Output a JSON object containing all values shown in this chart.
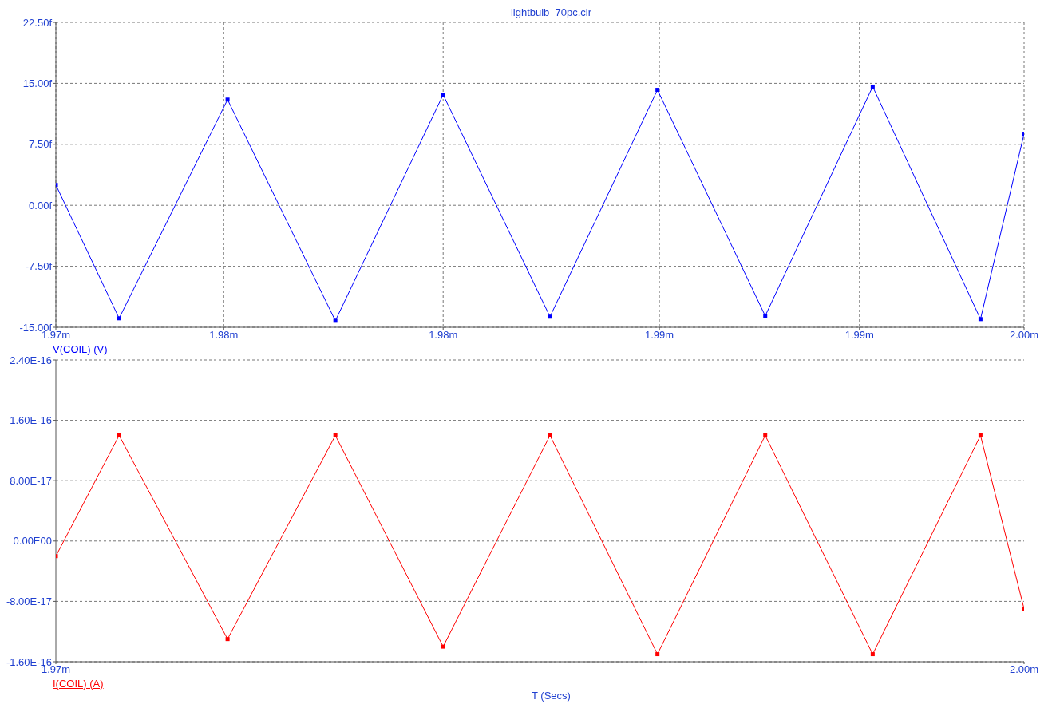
{
  "chart_data": [
    {
      "type": "line",
      "title": "lightbulb_70pc.cir",
      "marker": "square",
      "grid": true,
      "x": [
        1.97,
        1.97196,
        1.97532,
        1.97866,
        1.982,
        1.98531,
        1.98864,
        1.99198,
        1.99531,
        1.99865,
        2.0
      ],
      "xlim": [
        1.97,
        2.0
      ],
      "xticks": [
        {
          "value": 1.97,
          "label": "1.97m"
        },
        {
          "value": 1.9752,
          "label": "1.98m"
        },
        {
          "value": 1.982,
          "label": "1.98m"
        },
        {
          "value": 1.9887,
          "label": "1.99m"
        },
        {
          "value": 1.9949,
          "label": "1.99m"
        },
        {
          "value": 2.0,
          "label": "2.00m"
        }
      ],
      "ylim": [
        -15,
        22.5
      ],
      "yticks": [
        {
          "value": -15,
          "label": "-15.00f"
        },
        {
          "value": -7.5,
          "label": "-7.50f"
        },
        {
          "value": 0,
          "label": "0.00f"
        },
        {
          "value": 7.5,
          "label": "7.50f"
        },
        {
          "value": 15,
          "label": "15.00f"
        },
        {
          "value": 22.5,
          "label": "22.50f"
        }
      ],
      "series": [
        {
          "name": "V(COIL) (V)",
          "color": "#0000ff",
          "values": [
            2.5,
            -13.9,
            13.0,
            -14.2,
            13.6,
            -13.7,
            14.2,
            -13.6,
            14.6,
            -14.0,
            8.8
          ]
        }
      ]
    },
    {
      "type": "line",
      "xlabel": "T (Secs)",
      "marker": "square",
      "grid": "y",
      "x": [
        1.97,
        1.97196,
        1.97532,
        1.97866,
        1.982,
        1.98531,
        1.98864,
        1.99198,
        1.99531,
        1.99865,
        2.0
      ],
      "xlim": [
        1.97,
        2.0
      ],
      "xticks": [
        {
          "value": 1.97,
          "label": "1.97m"
        },
        {
          "value": 2.0,
          "label": "2.00m"
        }
      ],
      "ylim": [
        -1.6e-16,
        2.4e-16
      ],
      "yticks": [
        {
          "value": -1.6e-16,
          "label": "-1.60E-16"
        },
        {
          "value": -8e-17,
          "label": "-8.00E-17"
        },
        {
          "value": 0,
          "label": "0.00E00"
        },
        {
          "value": 8e-17,
          "label": "8.00E-17"
        },
        {
          "value": 1.6e-16,
          "label": "1.60E-16"
        },
        {
          "value": 2.4e-16,
          "label": "2.40E-16"
        }
      ],
      "series": [
        {
          "name": "I(COIL) (A)",
          "color": "#ff0000",
          "values": [
            -2e-17,
            1.4e-16,
            -1.3e-16,
            1.4e-16,
            -1.4e-16,
            1.4e-16,
            -1.5e-16,
            1.4e-16,
            -1.5e-16,
            1.4e-16,
            -9e-17
          ]
        }
      ]
    }
  ]
}
